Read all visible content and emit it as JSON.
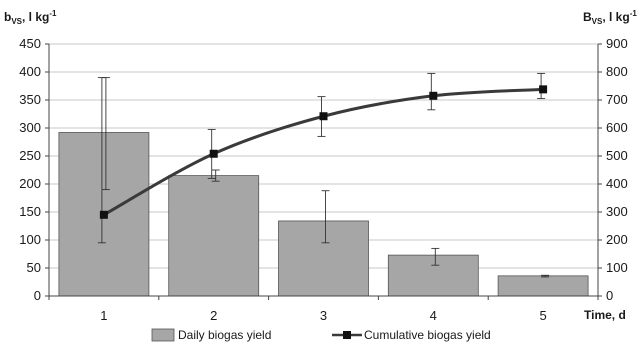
{
  "chart_data": {
    "type": "bar",
    "categories": [
      "1",
      "2",
      "3",
      "4",
      "5"
    ],
    "y_left": {
      "label_main": "b",
      "label_sub": "VS",
      "label_unit": ", l kg",
      "label_sup": "-1",
      "ticks": [
        "0",
        "50",
        "100",
        "150",
        "200",
        "250",
        "300",
        "350",
        "400",
        "450"
      ],
      "ylim": [
        0,
        450
      ]
    },
    "y_right": {
      "label_main": "B",
      "label_sub": "VS",
      "label_unit": ", l kg",
      "label_sup": "-1",
      "ticks": [
        "0",
        "100",
        "200",
        "300",
        "400",
        "500",
        "600",
        "700",
        "800",
        "900"
      ],
      "ylim": [
        0,
        900
      ]
    },
    "xlabel": "Time, d",
    "grid": true,
    "legend_position": "bottom",
    "series": [
      {
        "name": "Daily biogas yield",
        "type": "bar",
        "axis": "left",
        "values": [
          292,
          215,
          134,
          73,
          36
        ],
        "error": [
          [
            190,
            390
          ],
          [
            205,
            225
          ],
          [
            95,
            188
          ],
          [
            55,
            85
          ],
          [
            34,
            37
          ]
        ],
        "color": "#a6a6a6"
      },
      {
        "name": "Cumulative biogas yield",
        "type": "line",
        "axis": "right",
        "values": [
          290,
          508,
          642,
          715,
          738
        ],
        "error": [
          [
            190,
            780
          ],
          [
            420,
            595
          ],
          [
            570,
            712
          ],
          [
            665,
            795
          ],
          [
            705,
            795
          ]
        ],
        "color": "#3a3a3a"
      }
    ]
  }
}
